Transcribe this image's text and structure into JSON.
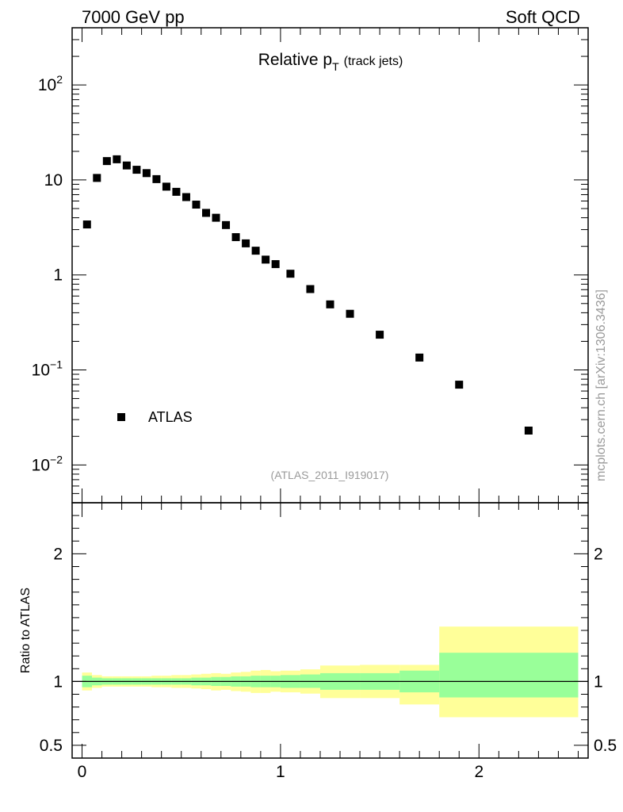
{
  "header": {
    "left": "7000 GeV pp",
    "right": "Soft QCD"
  },
  "side_label": "mcplots.cern.ch [arXiv:1306.3436]",
  "chart_data": [
    {
      "type": "scatter",
      "panel": "main",
      "title": "Relative p",
      "title_sub": "T",
      "title_suffix": "(track jets)",
      "ylabel": "",
      "xlabel": "",
      "yscale": "log",
      "ylim": [
        0.004,
        400
      ],
      "xlim": [
        -0.05,
        2.55
      ],
      "ytick_labels": [
        {
          "value": 100,
          "base": "10",
          "exp": "2"
        },
        {
          "value": 10,
          "base": "10",
          "exp": ""
        },
        {
          "value": 1,
          "base": "1",
          "exp": ""
        },
        {
          "value": 0.1,
          "base": "10",
          "exp": "−1"
        },
        {
          "value": 0.01,
          "base": "10",
          "exp": "−2"
        }
      ],
      "watermark": "(ATLAS_2011_I919017)",
      "legend": {
        "position": "bottom-left",
        "entries": [
          "ATLAS"
        ]
      },
      "series": [
        {
          "name": "ATLAS",
          "marker": "square",
          "color": "#000000",
          "x": [
            0.025,
            0.075,
            0.125,
            0.175,
            0.225,
            0.275,
            0.325,
            0.375,
            0.425,
            0.475,
            0.525,
            0.575,
            0.625,
            0.675,
            0.725,
            0.775,
            0.825,
            0.875,
            0.925,
            0.975,
            1.05,
            1.15,
            1.25,
            1.35,
            1.5,
            1.7,
            1.9,
            2.25
          ],
          "y": [
            3.4,
            10.5,
            15.8,
            16.5,
            14.2,
            12.8,
            11.8,
            10.2,
            8.5,
            7.5,
            6.6,
            5.5,
            4.5,
            4.0,
            3.35,
            2.5,
            2.15,
            1.8,
            1.45,
            1.3,
            1.03,
            0.71,
            0.49,
            0.39,
            0.235,
            0.135,
            0.07,
            0.023
          ]
        }
      ]
    },
    {
      "type": "area",
      "panel": "ratio",
      "ylabel": "Ratio to ATLAS",
      "xlabel": "",
      "ylim": [
        0.4,
        2.4
      ],
      "xlim": [
        -0.05,
        2.55
      ],
      "yticks": [
        0.5,
        1,
        2
      ],
      "ytick_labels": [
        "0.5",
        "1",
        "2"
      ],
      "xticks": [
        0,
        1,
        2
      ],
      "xtick_labels": [
        "0",
        "1",
        "2"
      ],
      "reference_line": 1,
      "bands": [
        {
          "name": "stat+syst",
          "color": "#ffff99",
          "bins": [
            {
              "x0": 0.0,
              "x1": 0.05,
              "lo": 0.93,
              "hi": 1.07
            },
            {
              "x0": 0.05,
              "x1": 0.1,
              "lo": 0.95,
              "hi": 1.05
            },
            {
              "x0": 0.1,
              "x1": 0.15,
              "lo": 0.96,
              "hi": 1.04
            },
            {
              "x0": 0.15,
              "x1": 0.2,
              "lo": 0.96,
              "hi": 1.04
            },
            {
              "x0": 0.2,
              "x1": 0.25,
              "lo": 0.96,
              "hi": 1.04
            },
            {
              "x0": 0.25,
              "x1": 0.3,
              "lo": 0.96,
              "hi": 1.04
            },
            {
              "x0": 0.3,
              "x1": 0.35,
              "lo": 0.96,
              "hi": 1.04
            },
            {
              "x0": 0.35,
              "x1": 0.4,
              "lo": 0.955,
              "hi": 1.045
            },
            {
              "x0": 0.4,
              "x1": 0.45,
              "lo": 0.955,
              "hi": 1.045
            },
            {
              "x0": 0.45,
              "x1": 0.5,
              "lo": 0.95,
              "hi": 1.05
            },
            {
              "x0": 0.5,
              "x1": 0.55,
              "lo": 0.95,
              "hi": 1.05
            },
            {
              "x0": 0.55,
              "x1": 0.6,
              "lo": 0.945,
              "hi": 1.055
            },
            {
              "x0": 0.6,
              "x1": 0.65,
              "lo": 0.94,
              "hi": 1.06
            },
            {
              "x0": 0.65,
              "x1": 0.7,
              "lo": 0.93,
              "hi": 1.065
            },
            {
              "x0": 0.7,
              "x1": 0.75,
              "lo": 0.935,
              "hi": 1.06
            },
            {
              "x0": 0.75,
              "x1": 0.8,
              "lo": 0.925,
              "hi": 1.07
            },
            {
              "x0": 0.8,
              "x1": 0.85,
              "lo": 0.92,
              "hi": 1.075
            },
            {
              "x0": 0.85,
              "x1": 0.9,
              "lo": 0.91,
              "hi": 1.085
            },
            {
              "x0": 0.9,
              "x1": 0.95,
              "lo": 0.91,
              "hi": 1.09
            },
            {
              "x0": 0.95,
              "x1": 1.0,
              "lo": 0.92,
              "hi": 1.08
            },
            {
              "x0": 1.0,
              "x1": 1.1,
              "lo": 0.915,
              "hi": 1.085
            },
            {
              "x0": 1.1,
              "x1": 1.2,
              "lo": 0.905,
              "hi": 1.095
            },
            {
              "x0": 1.2,
              "x1": 1.4,
              "lo": 0.87,
              "hi": 1.125
            },
            {
              "x0": 1.4,
              "x1": 1.6,
              "lo": 0.87,
              "hi": 1.13
            },
            {
              "x0": 1.6,
              "x1": 1.8,
              "lo": 0.82,
              "hi": 1.13
            },
            {
              "x0": 1.8,
              "x1": 2.5,
              "lo": 0.72,
              "hi": 1.43
            }
          ]
        },
        {
          "name": "stat",
          "color": "#99ff99",
          "bins": [
            {
              "x0": 0.0,
              "x1": 0.05,
              "lo": 0.955,
              "hi": 1.045
            },
            {
              "x0": 0.05,
              "x1": 0.1,
              "lo": 0.97,
              "hi": 1.03
            },
            {
              "x0": 0.1,
              "x1": 0.15,
              "lo": 0.975,
              "hi": 1.025
            },
            {
              "x0": 0.15,
              "x1": 0.2,
              "lo": 0.975,
              "hi": 1.025
            },
            {
              "x0": 0.2,
              "x1": 0.25,
              "lo": 0.975,
              "hi": 1.025
            },
            {
              "x0": 0.25,
              "x1": 0.3,
              "lo": 0.975,
              "hi": 1.025
            },
            {
              "x0": 0.3,
              "x1": 0.35,
              "lo": 0.975,
              "hi": 1.025
            },
            {
              "x0": 0.35,
              "x1": 0.4,
              "lo": 0.975,
              "hi": 1.025
            },
            {
              "x0": 0.4,
              "x1": 0.45,
              "lo": 0.975,
              "hi": 1.025
            },
            {
              "x0": 0.45,
              "x1": 0.5,
              "lo": 0.975,
              "hi": 1.025
            },
            {
              "x0": 0.5,
              "x1": 0.55,
              "lo": 0.975,
              "hi": 1.025
            },
            {
              "x0": 0.55,
              "x1": 0.6,
              "lo": 0.97,
              "hi": 1.03
            },
            {
              "x0": 0.6,
              "x1": 0.65,
              "lo": 0.97,
              "hi": 1.03
            },
            {
              "x0": 0.65,
              "x1": 0.7,
              "lo": 0.965,
              "hi": 1.035
            },
            {
              "x0": 0.7,
              "x1": 0.75,
              "lo": 0.965,
              "hi": 1.035
            },
            {
              "x0": 0.75,
              "x1": 0.8,
              "lo": 0.96,
              "hi": 1.04
            },
            {
              "x0": 0.8,
              "x1": 0.85,
              "lo": 0.96,
              "hi": 1.04
            },
            {
              "x0": 0.85,
              "x1": 0.9,
              "lo": 0.955,
              "hi": 1.045
            },
            {
              "x0": 0.9,
              "x1": 0.95,
              "lo": 0.955,
              "hi": 1.045
            },
            {
              "x0": 0.95,
              "x1": 1.0,
              "lo": 0.955,
              "hi": 1.045
            },
            {
              "x0": 1.0,
              "x1": 1.1,
              "lo": 0.95,
              "hi": 1.05
            },
            {
              "x0": 1.1,
              "x1": 1.2,
              "lo": 0.95,
              "hi": 1.055
            },
            {
              "x0": 1.2,
              "x1": 1.4,
              "lo": 0.935,
              "hi": 1.065
            },
            {
              "x0": 1.4,
              "x1": 1.6,
              "lo": 0.935,
              "hi": 1.065
            },
            {
              "x0": 1.6,
              "x1": 1.8,
              "lo": 0.915,
              "hi": 1.085
            },
            {
              "x0": 1.8,
              "x1": 2.5,
              "lo": 0.875,
              "hi": 1.225
            }
          ]
        }
      ]
    }
  ]
}
